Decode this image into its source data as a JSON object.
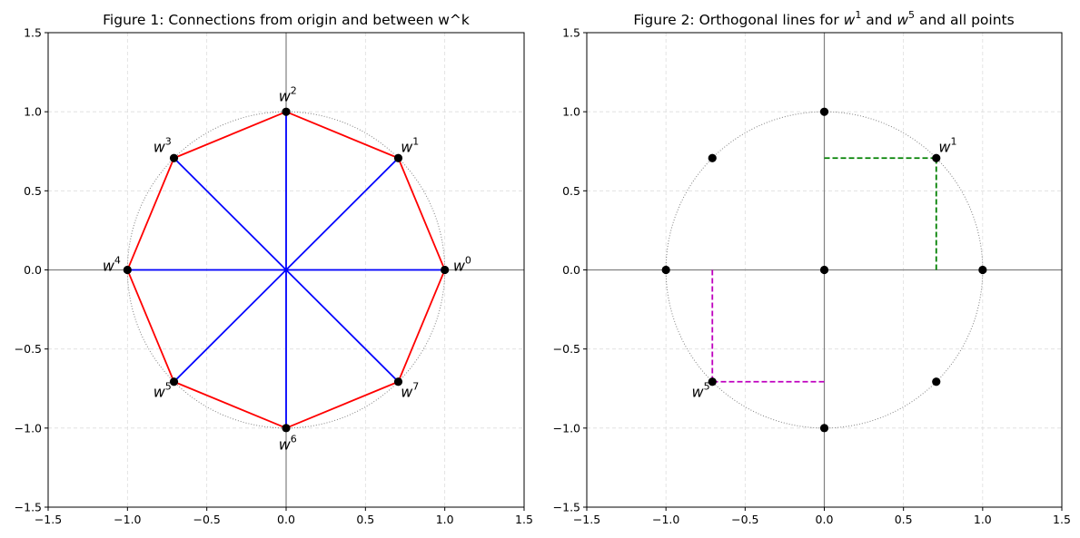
{
  "chart_data": [
    {
      "type": "scatter",
      "title": "Figure 1: Connections from origin and between w^k",
      "xlim": [
        -1.5,
        1.5
      ],
      "ylim": [
        -1.5,
        1.5
      ],
      "xticks": [
        "−1.5",
        "−1.0",
        "−0.5",
        "0.0",
        "0.5",
        "1.0",
        "1.5"
      ],
      "yticks": [
        "−1.5",
        "−1.0",
        "−0.5",
        "0.0",
        "0.5",
        "1.0",
        "1.5"
      ],
      "grid": true,
      "unit_circle": true,
      "points": [
        {
          "k": 0,
          "x": 1.0,
          "y": 0.0
        },
        {
          "k": 1,
          "x": 0.707,
          "y": 0.707
        },
        {
          "k": 2,
          "x": 0.0,
          "y": 1.0
        },
        {
          "k": 3,
          "x": -0.707,
          "y": 0.707
        },
        {
          "k": 4,
          "x": -1.0,
          "y": 0.0
        },
        {
          "k": 5,
          "x": -0.707,
          "y": -0.707
        },
        {
          "k": 6,
          "x": 0.0,
          "y": -1.0
        },
        {
          "k": 7,
          "x": 0.707,
          "y": -0.707
        }
      ],
      "labels": [
        {
          "base": "w",
          "sup": "0",
          "x": 1.11,
          "y": 0.03
        },
        {
          "base": "w",
          "sup": "1",
          "x": 0.78,
          "y": 0.78
        },
        {
          "base": "w",
          "sup": "2",
          "x": 0.01,
          "y": 1.1
        },
        {
          "base": "w",
          "sup": "3",
          "x": -0.78,
          "y": 0.78
        },
        {
          "base": "w",
          "sup": "4",
          "x": -1.1,
          "y": 0.03
        },
        {
          "base": "w",
          "sup": "5",
          "x": -0.78,
          "y": -0.77
        },
        {
          "base": "w",
          "sup": "6",
          "x": 0.01,
          "y": -1.1
        },
        {
          "base": "w",
          "sup": "7",
          "x": 0.78,
          "y": -0.77
        }
      ],
      "spokes": {
        "color": "#0000ff"
      },
      "polygon": {
        "color": "#ff0000"
      }
    },
    {
      "type": "scatter",
      "title": "Figure 2: Orthogonal lines for w¹ and w⁵ and all points",
      "xlim": [
        -1.5,
        1.5
      ],
      "ylim": [
        -1.5,
        1.5
      ],
      "xticks": [
        "−1.5",
        "−1.0",
        "−0.5",
        "0.0",
        "0.5",
        "1.0",
        "1.5"
      ],
      "yticks": [
        "−1.5",
        "−1.0",
        "−0.5",
        "0.0",
        "0.5",
        "1.0",
        "1.5"
      ],
      "grid": true,
      "unit_circle": true,
      "points": [
        {
          "x": 0.0,
          "y": 0.0
        },
        {
          "x": 1.0,
          "y": 0.0
        },
        {
          "x": 0.707,
          "y": 0.707
        },
        {
          "x": 0.0,
          "y": 1.0
        },
        {
          "x": -0.707,
          "y": 0.707
        },
        {
          "x": -1.0,
          "y": 0.0
        },
        {
          "x": -0.707,
          "y": -0.707
        },
        {
          "x": 0.0,
          "y": -1.0
        },
        {
          "x": 0.707,
          "y": -0.707
        }
      ],
      "labels": [
        {
          "base": "w",
          "sup": "1",
          "x": 0.78,
          "y": 0.78
        },
        {
          "base": "w",
          "sup": "5",
          "x": -0.78,
          "y": -0.77
        }
      ],
      "orthogonal_lines": [
        {
          "color": "#008000",
          "point": [
            0.707,
            0.707
          ]
        },
        {
          "color": "#bf00bf",
          "point": [
            -0.707,
            -0.707
          ]
        }
      ]
    }
  ]
}
